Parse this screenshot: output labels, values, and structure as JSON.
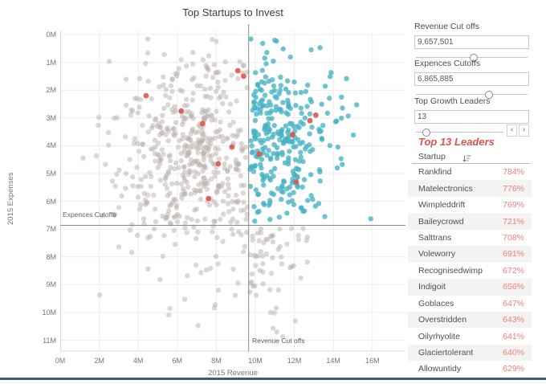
{
  "chart_data": {
    "type": "scatter",
    "title": "Top Startups to Invest",
    "xlabel": "2015 Revenue",
    "ylabel": "2015 Expenses",
    "x_ticks": [
      "0M",
      "2M",
      "4M",
      "6M",
      "8M",
      "10M",
      "12M",
      "14M",
      "16M"
    ],
    "y_ticks": [
      "0M",
      "1M",
      "2M",
      "3M",
      "4M",
      "5M",
      "6M",
      "7M",
      "8M",
      "9M",
      "10M",
      "11M"
    ],
    "xlim_m": [
      0,
      17.7
    ],
    "ylim_m": [
      0,
      11.85
    ],
    "y_axis_reversed": true,
    "grid": true,
    "legend": "none",
    "colors": {
      "qualified": "#45b2c4",
      "other": "#b9b0ab",
      "leader": "#e0574f",
      "grid": "#ececec",
      "axis": "#d8d8d8",
      "ref_line": "#8a8a8a"
    },
    "ref_lines": {
      "vertical": {
        "label": "Revenue Cut offs",
        "value_m": 9.657501
      },
      "horizontal": {
        "label": "Expences Cutoffs",
        "value_m": 6.865885
      }
    },
    "clusters": [
      {
        "name": "other-startups-left",
        "color": "#b9b0ab",
        "opacity": 0.5,
        "r": 3.2,
        "count": 520,
        "seed": 11,
        "x": {
          "mean": 7.0,
          "sd": 1.9,
          "min": 0.6,
          "max": 9.6
        },
        "y": {
          "mean": 4.3,
          "sd": 2.1,
          "min": 0.15,
          "max": 11.3
        }
      },
      {
        "name": "qualified-startups",
        "color": "#45b2c4",
        "opacity": 0.78,
        "r": 3.2,
        "count": 300,
        "seed": 7,
        "x": {
          "mean": 9.72,
          "sd": 2.1,
          "min": 9.72,
          "max": 17.55,
          "half": true
        },
        "y": {
          "mean": 3.7,
          "sd": 1.7,
          "min": 0.1,
          "max": 6.8
        }
      },
      {
        "name": "other-startups-bottom-right",
        "color": "#b9b0ab",
        "opacity": 0.5,
        "r": 3.2,
        "count": 60,
        "seed": 3,
        "x": {
          "mean": 9.72,
          "sd": 1.6,
          "min": 9.72,
          "max": 16.0,
          "half": true
        },
        "y": {
          "mean": 6.95,
          "sd": 1.4,
          "min": 6.95,
          "max": 11.3,
          "half": true
        }
      }
    ],
    "leader_points": [
      [
        9.1,
        1.3
      ],
      [
        9.4,
        1.5
      ],
      [
        4.4,
        2.2
      ],
      [
        6.2,
        2.75
      ],
      [
        13.1,
        2.9
      ],
      [
        12.8,
        3.1
      ],
      [
        7.3,
        3.2
      ],
      [
        11.9,
        3.6
      ],
      [
        8.8,
        4.05
      ],
      [
        10.2,
        4.3
      ],
      [
        8.1,
        4.65
      ],
      [
        12.1,
        5.3
      ],
      [
        7.6,
        5.9
      ]
    ]
  },
  "filters": [
    {
      "label": "Revenue Cut offs",
      "value": "9,657,501",
      "thumb_left": "52%"
    },
    {
      "label": "Expences Cutoffs",
      "value": "6,865,885",
      "thumb_left": "65%"
    },
    {
      "label": "Top Growth Leaders",
      "value": "13",
      "thumb_left": "13%",
      "arrow_left": "‹",
      "arrow_right": "›"
    }
  ],
  "leaders": {
    "title": "Top 13 Leaders",
    "column_header": "Startup",
    "sort_icon": "sort-descending",
    "rows": [
      {
        "name": "Rankfind",
        "growth": "784%"
      },
      {
        "name": "Matelectronics",
        "growth": "776%"
      },
      {
        "name": "Wimpleddrift",
        "growth": "769%"
      },
      {
        "name": "Baileycrowd",
        "growth": "721%"
      },
      {
        "name": "Salttrans",
        "growth": "708%"
      },
      {
        "name": "Voleworry",
        "growth": "691%"
      },
      {
        "name": "Recognisedwimp",
        "growth": "672%"
      },
      {
        "name": "Indigoit",
        "growth": "656%"
      },
      {
        "name": "Goblaces",
        "growth": "647%"
      },
      {
        "name": "Overstridden",
        "growth": "643%"
      },
      {
        "name": "Oilyrhyolite",
        "growth": "641%"
      },
      {
        "name": "Glaciertolerant",
        "growth": "640%"
      },
      {
        "name": "Allowuntidy",
        "growth": "629%"
      }
    ]
  }
}
